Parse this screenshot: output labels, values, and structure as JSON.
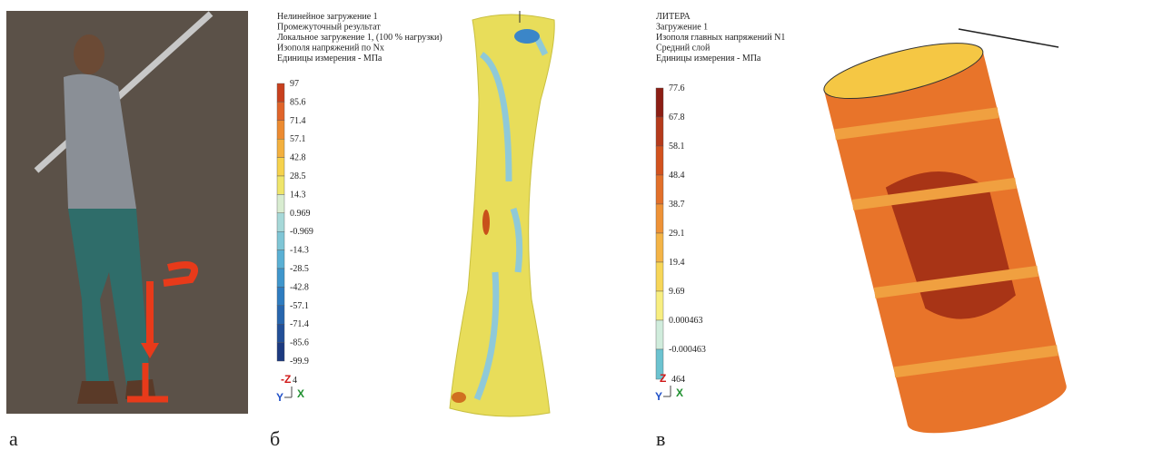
{
  "panels": [
    {
      "caption": "а"
    },
    {
      "caption": "б",
      "header": [
        "Нелинейное загружение 1",
        "Промежуточный результат",
        "Локальное загружение 1, (100 % нагрузки)",
        "Изополя напряжений по Nx",
        "Единицы измерения - МПа"
      ],
      "legend": [
        "97",
        "85.6",
        "71.4",
        "57.1",
        "42.8",
        "28.5",
        "14.3",
        "0.969",
        "-0.969",
        "-14.3",
        "-28.5",
        "-42.8",
        "-57.1",
        "-71.4",
        "-85.6",
        "-99.9"
      ],
      "axes": {
        "z": "-Z",
        "z_note": "4",
        "y": "Y",
        "x": "X"
      }
    },
    {
      "caption": "в",
      "header": [
        "ЛИТЕРА",
        "Загружение 1",
        "Изополя главных напряжений N1",
        "Средний слой",
        "Единицы измерения - МПа"
      ],
      "legend": [
        "77.6",
        "67.8",
        "58.1",
        "48.4",
        "38.7",
        "29.1",
        "19.4",
        "9.69",
        "0.000463",
        "-0.000463"
      ],
      "axes": {
        "z": "Z",
        "z_note": "464",
        "y": "Y",
        "x": "X"
      }
    }
  ]
}
